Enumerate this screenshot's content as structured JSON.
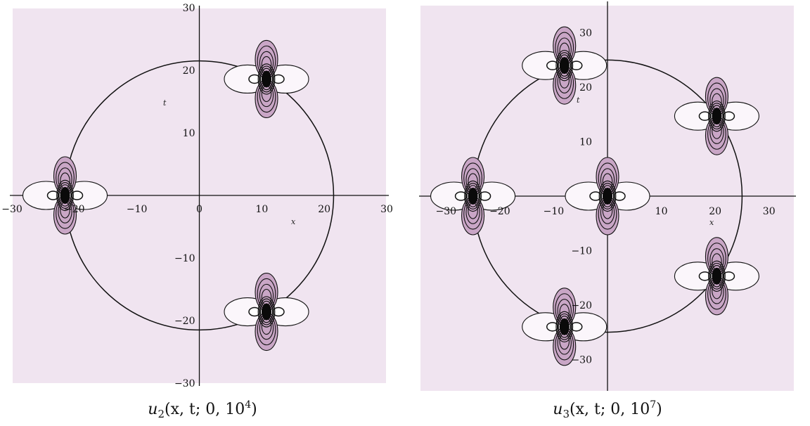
{
  "chart_data": [
    {
      "type": "contour",
      "caption": {
        "func": "u",
        "sub": "2",
        "args": "(x, t; 0, 10",
        "sup": "4",
        "close": ")"
      },
      "xlabel": "x",
      "ylabel": "t",
      "xlim": [
        -30,
        30
      ],
      "ylim": [
        -30,
        30
      ],
      "xticks": [
        -30,
        -20,
        -10,
        0,
        10,
        20,
        30
      ],
      "yticks": [
        -30,
        -20,
        -10,
        10,
        20,
        30
      ],
      "circle_radius": 21.5,
      "peaks": [
        {
          "x": -21.5,
          "t": 0
        },
        {
          "x": 10.75,
          "t": 18.6
        },
        {
          "x": 10.75,
          "t": -18.6
        }
      ],
      "colors": {
        "background": "#f0e4f0",
        "lobe_dark": "#c9a6c6",
        "lobe_light": "#fbf6fb",
        "line": "#111111"
      }
    },
    {
      "type": "contour",
      "caption": {
        "func": "u",
        "sub": "3",
        "args": "(x, t; 0, 10",
        "sup": "7",
        "close": ")"
      },
      "xlabel": "x",
      "ylabel": "t",
      "xlim": [
        -35,
        35
      ],
      "ylim": [
        -35,
        35
      ],
      "xticks": [
        -30,
        -20,
        -10,
        10,
        20,
        30
      ],
      "yticks": [
        -30,
        -20,
        -10,
        10,
        20,
        30
      ],
      "circle_radius": 25,
      "peaks": [
        {
          "x": 0,
          "t": 0
        },
        {
          "x": -25,
          "t": 0
        },
        {
          "x": -8,
          "t": 24
        },
        {
          "x": -8,
          "t": -24
        },
        {
          "x": 20.3,
          "t": 14.7
        },
        {
          "x": 20.3,
          "t": -14.7
        }
      ],
      "colors": {
        "background": "#f0e4f0",
        "lobe_dark": "#c9a6c6",
        "lobe_light": "#fbf6fb",
        "line": "#111111"
      }
    }
  ]
}
